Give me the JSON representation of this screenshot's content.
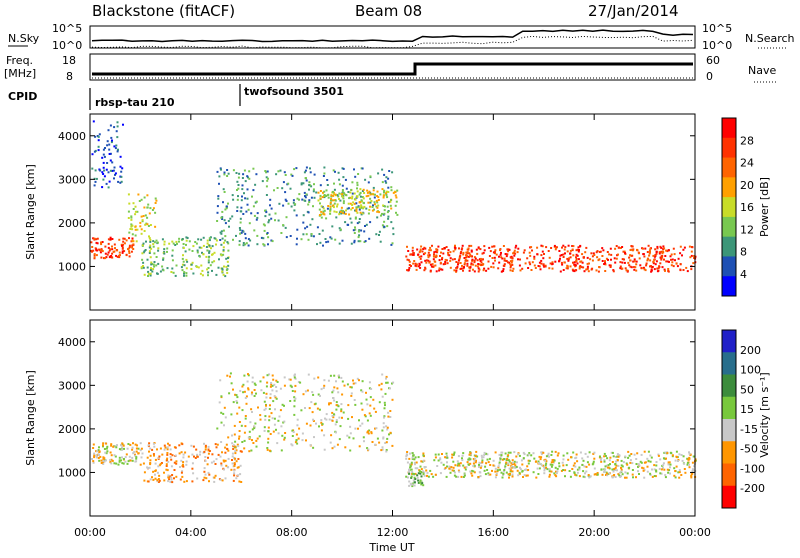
{
  "header": {
    "title": "Blackstone (fitACF)",
    "beam": "Beam 08",
    "date": "27/Jan/2014"
  },
  "strip_labels": {
    "nsky": "N.Sky",
    "freq": "Freq.",
    "freq_unit": "[MHz]",
    "cpid": "CPID",
    "nsearch": "N.Search",
    "nave": "Nave",
    "log_hi": "10^5",
    "log_lo": "10^0",
    "freq_ticks": [
      "18",
      "8"
    ],
    "nave_ticks": [
      "60",
      "0"
    ]
  },
  "cpid_programs": [
    "rbsp-tau 210",
    "twofsound 3501"
  ],
  "colors": {
    "power": [
      "#0000ff",
      "#1e50b4",
      "#3c9678",
      "#78c850",
      "#c8dc28",
      "#ffa000",
      "#ff6400",
      "#ff3200",
      "#ff0000"
    ],
    "velocity": [
      "#2020c8",
      "#286e8c",
      "#3c8c3c",
      "#78c83c",
      "#c8c8c8",
      "#ff9600",
      "#ff6400",
      "#ff0000"
    ]
  },
  "chart_data": [
    {
      "type": "heatmap",
      "title": "Power",
      "ylabel": "Slant Range [km]",
      "xlabel": "Time UT",
      "xticks": [
        "00:00",
        "04:00",
        "08:00",
        "12:00",
        "16:00",
        "20:00",
        "00:00"
      ],
      "yticks": [
        1000,
        2000,
        3000,
        4000
      ],
      "ylim": [
        0,
        4500
      ],
      "colorbar": {
        "label": "Power [dB]",
        "ticks": [
          4,
          8,
          12,
          16,
          20,
          24,
          28
        ]
      },
      "bands": [
        {
          "t0": 0.0,
          "t1": 1.7,
          "r0": 1200,
          "r1": 1700,
          "level": 7
        },
        {
          "t0": 1.5,
          "t1": 2.6,
          "r0": 1600,
          "r1": 2700,
          "level": 4
        },
        {
          "t0": 2.0,
          "t1": 5.5,
          "r0": 800,
          "r1": 1700,
          "level": 3
        },
        {
          "t0": 5.0,
          "t1": 12.0,
          "r0": 1500,
          "r1": 3300,
          "level": 2
        },
        {
          "t0": 9.0,
          "t1": 12.2,
          "r0": 2200,
          "r1": 2800,
          "level": 4
        },
        {
          "t0": 12.5,
          "t1": 24.0,
          "r0": 900,
          "r1": 1500,
          "level": 7
        },
        {
          "t0": 0.0,
          "t1": 1.3,
          "r0": 2800,
          "r1": 4400,
          "level": 1
        }
      ]
    },
    {
      "type": "heatmap",
      "title": "Velocity",
      "ylabel": "Slant Range [km]",
      "xlabel": "Time UT",
      "xticks": [
        "00:00",
        "04:00",
        "08:00",
        "12:00",
        "16:00",
        "20:00",
        "00:00"
      ],
      "yticks": [
        1000,
        2000,
        3000,
        4000
      ],
      "ylim": [
        0,
        4500
      ],
      "colorbar": {
        "label": "Velocity [m s⁻¹]",
        "ticks": [
          "200",
          "100",
          "50",
          "15",
          "-15",
          "-50",
          "-100",
          "-200"
        ]
      },
      "bands": [
        {
          "t0": 0.0,
          "t1": 2.0,
          "r0": 1200,
          "r1": 1700,
          "level": 4
        },
        {
          "t0": 2.0,
          "t1": 6.0,
          "r0": 800,
          "r1": 1700,
          "level": 5
        },
        {
          "t0": 5.0,
          "t1": 12.0,
          "r0": 1500,
          "r1": 3300,
          "level": 4
        },
        {
          "t0": 12.5,
          "t1": 24.0,
          "r0": 900,
          "r1": 1500,
          "level": 4
        },
        {
          "t0": 12.6,
          "t1": 13.2,
          "r0": 700,
          "r1": 1100,
          "level": 3
        }
      ]
    }
  ]
}
